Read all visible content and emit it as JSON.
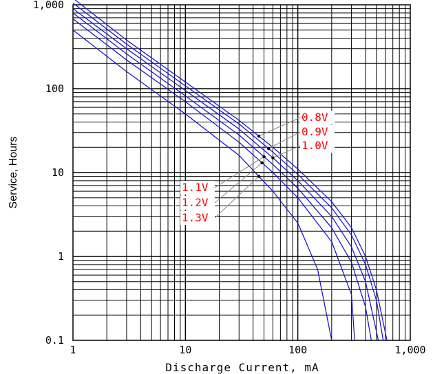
{
  "chart_data": {
    "type": "line",
    "xlabel": "Discharge Current, mA",
    "ylabel": "Service, Hours",
    "x_scale": "log",
    "y_scale": "log",
    "xlim": [
      1,
      1000
    ],
    "ylim": [
      0.1,
      1000
    ],
    "grid": true,
    "x_ticks": [
      "1",
      "10",
      "100",
      "1,000"
    ],
    "y_ticks": [
      "0.1",
      "1",
      "10",
      "100",
      "1,000"
    ],
    "line_color": "#1a1acc",
    "label_color": "#ff0000",
    "series": [
      {
        "name": "0.8V",
        "points": [
          [
            1,
            1200
          ],
          [
            3,
            380
          ],
          [
            10,
            120
          ],
          [
            30,
            42
          ],
          [
            60,
            20
          ],
          [
            100,
            11
          ],
          [
            200,
            4.5
          ],
          [
            300,
            2.2
          ],
          [
            400,
            1
          ],
          [
            500,
            0.4
          ],
          [
            620,
            0.1
          ]
        ]
      },
      {
        "name": "0.9V",
        "points": [
          [
            1,
            1050
          ],
          [
            3,
            340
          ],
          [
            10,
            108
          ],
          [
            30,
            38
          ],
          [
            60,
            17.5
          ],
          [
            100,
            9.5
          ],
          [
            200,
            3.8
          ],
          [
            300,
            1.8
          ],
          [
            400,
            0.8
          ],
          [
            500,
            0.3
          ],
          [
            575,
            0.1
          ]
        ]
      },
      {
        "name": "1.0V",
        "points": [
          [
            1,
            900
          ],
          [
            3,
            300
          ],
          [
            10,
            95
          ],
          [
            30,
            33
          ],
          [
            60,
            15
          ],
          [
            100,
            8
          ],
          [
            200,
            3
          ],
          [
            300,
            1.3
          ],
          [
            400,
            0.5
          ],
          [
            520,
            0.1
          ]
        ]
      },
      {
        "name": "1.1V",
        "points": [
          [
            1,
            800
          ],
          [
            3,
            260
          ],
          [
            10,
            82
          ],
          [
            30,
            28
          ],
          [
            60,
            12.5
          ],
          [
            100,
            6.5
          ],
          [
            200,
            2.2
          ],
          [
            300,
            0.85
          ],
          [
            400,
            0.25
          ],
          [
            450,
            0.1
          ]
        ]
      },
      {
        "name": "1.2V",
        "points": [
          [
            1,
            680
          ],
          [
            3,
            220
          ],
          [
            10,
            70
          ],
          [
            30,
            23
          ],
          [
            60,
            10
          ],
          [
            100,
            5
          ],
          [
            200,
            1.5
          ],
          [
            300,
            0.35
          ],
          [
            320,
            0.1
          ]
        ]
      },
      {
        "name": "1.3V",
        "points": [
          [
            1,
            500
          ],
          [
            3,
            160
          ],
          [
            10,
            50
          ],
          [
            30,
            16
          ],
          [
            60,
            6
          ],
          [
            100,
            2.5
          ],
          [
            150,
            0.7
          ],
          [
            200,
            0.1
          ]
        ]
      }
    ]
  }
}
